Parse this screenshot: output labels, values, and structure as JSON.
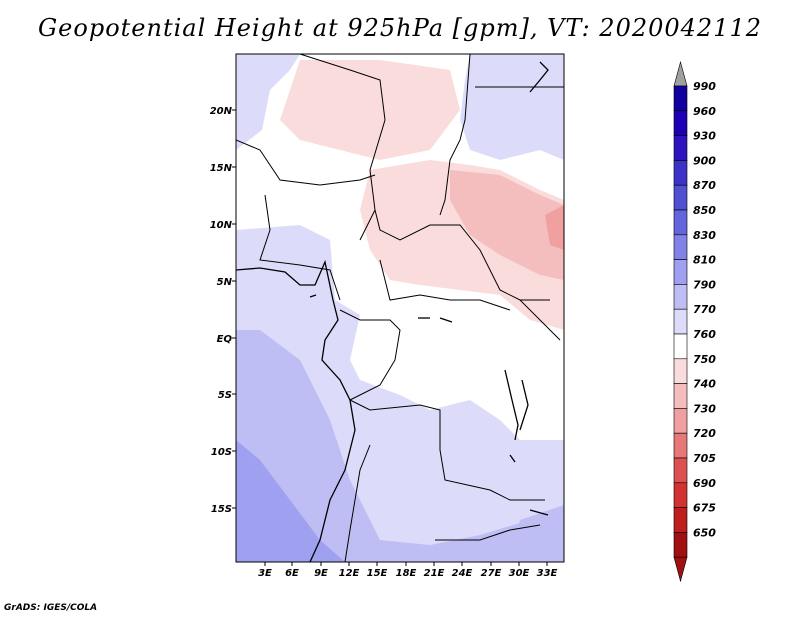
{
  "title": "Geopotential Height at 925hPa [gpm], VT: 2020042112",
  "credit": "GrADS: IGES/COLA",
  "map": {
    "lat_labels": [
      "20N",
      "15N",
      "10N",
      "5N",
      "EQ",
      "5S",
      "10S",
      "15S"
    ],
    "lon_labels": [
      "3E",
      "6E",
      "9E",
      "12E",
      "15E",
      "18E",
      "21E",
      "24E",
      "27E",
      "30E",
      "33E"
    ]
  },
  "legend": {
    "levels": [
      "990",
      "960",
      "930",
      "900",
      "870",
      "850",
      "830",
      "810",
      "790",
      "770",
      "760",
      "750",
      "740",
      "730",
      "720",
      "705",
      "690",
      "675",
      "650"
    ],
    "colors": [
      "#1000a0",
      "#1e00b4",
      "#2d14be",
      "#3c32c8",
      "#5050d2",
      "#6464dc",
      "#8282e6",
      "#a0a0f0",
      "#bebef5",
      "#dcdcfa",
      "#ffffff",
      "#fadcdc",
      "#f5bebe",
      "#f0a0a0",
      "#e67878",
      "#dc5050",
      "#d23232",
      "#be1e1e",
      "#a01010"
    ],
    "top_arrow_color": "#a0a0a0",
    "bottom_arrow_color": "#a01010"
  }
}
